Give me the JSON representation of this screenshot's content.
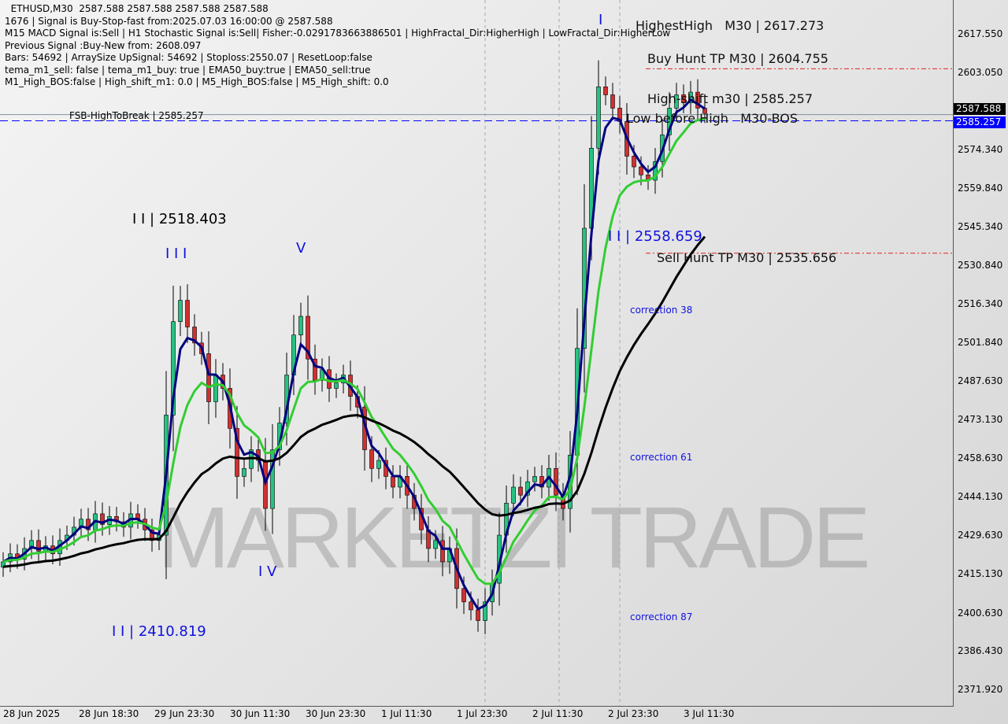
{
  "info_lines": [
    "  ETHUSD,M30  2587.588 2587.588 2587.588 2587.588",
    "1676 | Signal is Buy-Stop-fast from:2025.07.03 16:00:00 @ 2587.588",
    "M15 MACD Signal is:Sell | H1 Stochastic Signal is:Sell| Fisher:-0.0291783663886501 | HighFractal_Dir:HigherHigh | LowFractal_Dir:HigherLow",
    "Previous Signal :Buy-New from: 2608.097",
    "Bars: 54692 | ArraySize UpSignal: 54692 | Stoploss:2550.07 | ResetLoop:false",
    "tema_m1_sell: false | tema_m1_buy: true | EMA50_buy:true | EMA50_sell:true",
    "M1_High_BOS:false | High_shift_m1: 0.0 | M5_High_BOS:false | M5_High_shift: 0.0"
  ],
  "watermark": "MARKETZI TRADE",
  "annotations": {
    "highest_high": "HighestHigh   M30 | 2617.273",
    "buy_hunt": "Buy Hunt TP M30 | 2604.755",
    "high_shift": "High-shift m30 | 2585.257",
    "low_before_high": "Low before High   M30-BOS",
    "fsb": "FSB-HighToBreak | 2585.257",
    "ii_high": "I I | 2518.403",
    "iii": "I I I",
    "v": "V",
    "iv": "I V",
    "ii_low": "I I | 2410.819",
    "ii_mid": "I I | 2558.659",
    "sell_hunt": "Sell Hunt TP M30 | 2535.656",
    "i_top": "I",
    "corr38": "correction 38",
    "corr61": "correction 61",
    "corr87": "correction 87"
  },
  "price_tags": {
    "current": "2587.588",
    "level": "2585.257"
  },
  "colors": {
    "bull": "#26c281",
    "bear": "#d03030",
    "ema_fast": "#000080",
    "ema_mid": "#32cd32",
    "ema_slow": "#000000",
    "level": "#0000ff"
  },
  "chart_data": {
    "type": "candlestick",
    "symbol": "ETHUSD",
    "timeframe": "M30",
    "ylim": [
      2371.92,
      2617.55
    ],
    "y_ticks": [
      "2617.550",
      "2603.050",
      "2574.340",
      "2559.840",
      "2545.340",
      "2530.840",
      "2516.340",
      "2501.840",
      "2487.630",
      "2473.130",
      "2458.630",
      "2444.130",
      "2429.630",
      "2415.130",
      "2400.630",
      "2386.430",
      "2371.920"
    ],
    "x_ticks": [
      "28 Jun 2025",
      "28 Jun 18:30",
      "29 Jun 23:30",
      "30 Jun 11:30",
      "30 Jun 23:30",
      "1 Jul 11:30",
      "1 Jul 23:30",
      "2 Jul 11:30",
      "2 Jul 23:30",
      "3 Jul 11:30"
    ],
    "closes": [
      2420,
      2423,
      2421,
      2425,
      2428,
      2424,
      2426,
      2423,
      2428,
      2430,
      2433,
      2436,
      2432,
      2438,
      2434,
      2437,
      2435,
      2433,
      2438,
      2436,
      2432,
      2428,
      2430,
      2475,
      2510,
      2518,
      2508,
      2502,
      2498,
      2480,
      2490,
      2485,
      2470,
      2452,
      2455,
      2462,
      2458,
      2440,
      2462,
      2472,
      2490,
      2505,
      2512,
      2496,
      2488,
      2492,
      2485,
      2487,
      2490,
      2482,
      2478,
      2462,
      2455,
      2458,
      2452,
      2448,
      2452,
      2445,
      2440,
      2432,
      2425,
      2428,
      2420,
      2425,
      2410,
      2405,
      2402,
      2398,
      2405,
      2412,
      2430,
      2442,
      2448,
      2445,
      2450,
      2452,
      2448,
      2455,
      2445,
      2440,
      2460,
      2500,
      2545,
      2575,
      2598,
      2595,
      2590,
      2585,
      2572,
      2568,
      2565,
      2563,
      2570,
      2580,
      2590,
      2595,
      2592,
      2596,
      2590,
      2588
    ],
    "levels": [
      {
        "name": "Buy Hunt TP",
        "value": 2604.755
      },
      {
        "name": "High-shift / FSB-HighToBreak",
        "value": 2585.257
      },
      {
        "name": "Sell Hunt TP",
        "value": 2535.656
      },
      {
        "name": "current",
        "value": 2587.588
      }
    ]
  }
}
